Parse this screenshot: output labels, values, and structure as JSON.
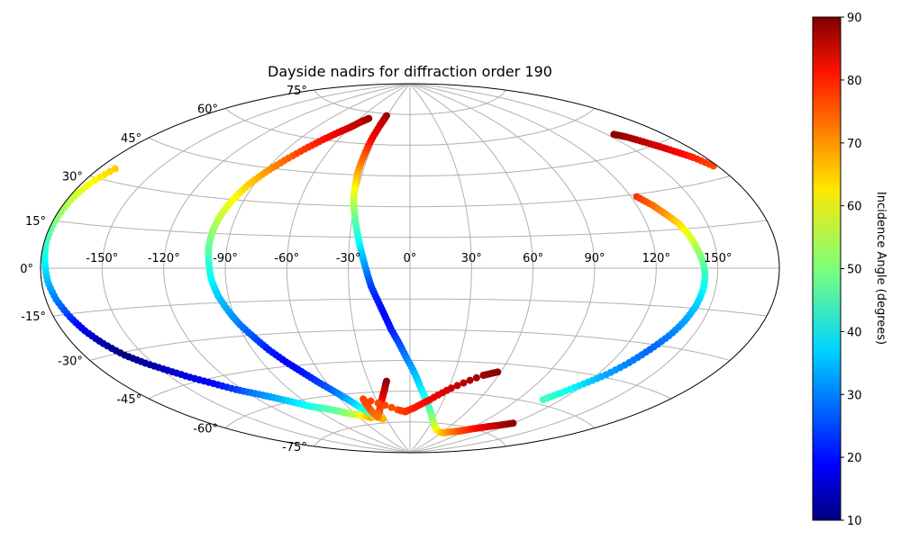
{
  "chart_data": {
    "type": "scatter",
    "projection": "aitoff",
    "title": "Dayside nadirs for diffraction order 190",
    "colorbar": {
      "label": "Incidence Angle (degrees)",
      "colormap": "jet",
      "range": [
        10,
        90
      ],
      "ticks": [
        "10",
        "20",
        "30",
        "40",
        "50",
        "60",
        "70",
        "80",
        "90"
      ]
    },
    "grid": true,
    "lon_ticks": [
      "-150°",
      "-120°",
      "-90°",
      "-60°",
      "-30°",
      "0°",
      "30°",
      "60°",
      "90°",
      "120°",
      "150°"
    ],
    "lat_ticks": [
      "75°",
      "60°",
      "45°",
      "30°",
      "15°",
      "0°",
      "-15°",
      "-30°",
      "-45°",
      "-60°",
      "-75°"
    ],
    "series": [
      {
        "points": [
          [
            -172,
            34,
            64
          ],
          [
            -176,
            28,
            60
          ],
          [
            -178,
            22,
            55
          ],
          [
            -179,
            15,
            50
          ],
          [
            -179,
            8,
            45
          ],
          [
            -178,
            2,
            40
          ],
          [
            -177,
            -4,
            35
          ],
          [
            -175,
            -10,
            30
          ],
          [
            -172,
            -16,
            24
          ],
          [
            -169,
            -21,
            18
          ],
          [
            -165,
            -26,
            13
          ],
          [
            -160,
            -31,
            10
          ],
          [
            -154,
            -35,
            12
          ],
          [
            -147,
            -39,
            15
          ],
          [
            -140,
            -43,
            18
          ],
          [
            -132,
            -47,
            20
          ],
          [
            -124,
            -51,
            25
          ],
          [
            -116,
            -54,
            30
          ],
          [
            -108,
            -57,
            33
          ],
          [
            -100,
            -60,
            37
          ],
          [
            -92,
            -63,
            41
          ],
          [
            -83,
            -65,
            45
          ],
          [
            -74,
            -67,
            48
          ],
          [
            -66,
            -69,
            52
          ],
          [
            -58,
            -70,
            56
          ],
          [
            -52,
            -71,
            62
          ],
          [
            -47,
            -72,
            66
          ]
        ]
      },
      {
        "points": [
          [
            -50,
            72,
            88
          ],
          [
            -55,
            70,
            86
          ],
          [
            -60,
            67,
            84
          ],
          [
            -66,
            64,
            82
          ],
          [
            -72,
            60,
            79
          ],
          [
            -78,
            55,
            76
          ],
          [
            -84,
            49,
            72
          ],
          [
            -89,
            43,
            68
          ],
          [
            -93,
            37,
            64
          ],
          [
            -96,
            30,
            60
          ],
          [
            -98,
            23,
            56
          ],
          [
            -99,
            16,
            52
          ],
          [
            -99,
            9,
            48
          ],
          [
            -98,
            2,
            44
          ],
          [
            -97,
            -5,
            40
          ],
          [
            -95,
            -12,
            36
          ],
          [
            -92,
            -19,
            33
          ],
          [
            -89,
            -25,
            30
          ],
          [
            -85,
            -31,
            26
          ],
          [
            -81,
            -37,
            22
          ],
          [
            -76,
            -43,
            20
          ],
          [
            -71,
            -48,
            21
          ],
          [
            -66,
            -53,
            24
          ],
          [
            -60,
            -58,
            28
          ],
          [
            -55,
            -62,
            33
          ],
          [
            -50,
            -66,
            38
          ],
          [
            -45,
            -69,
            44
          ],
          [
            -41,
            -71,
            50
          ],
          [
            -38,
            -72,
            56
          ],
          [
            -36,
            -73,
            62
          ],
          [
            -34,
            -73,
            66
          ]
        ]
      },
      {
        "points": [
          [
            -31,
            74,
            88
          ],
          [
            -32,
            69,
            84
          ],
          [
            -33,
            62,
            80
          ],
          [
            -33,
            55,
            74
          ],
          [
            -33,
            47,
            68
          ],
          [
            -32,
            40,
            62
          ],
          [
            -31,
            33,
            56
          ],
          [
            -29,
            26,
            50
          ],
          [
            -27,
            19,
            45
          ],
          [
            -25,
            12,
            40
          ],
          [
            -23,
            5,
            35
          ],
          [
            -21,
            -2,
            30
          ],
          [
            -19,
            -9,
            25
          ],
          [
            -16,
            -16,
            22
          ],
          [
            -13,
            -23,
            20
          ],
          [
            -10,
            -30,
            22
          ],
          [
            -6,
            -37,
            26
          ],
          [
            -2,
            -44,
            30
          ],
          [
            3,
            -51,
            34
          ],
          [
            8,
            -58,
            38
          ],
          [
            14,
            -64,
            42
          ],
          [
            21,
            -69,
            46
          ],
          [
            28,
            -73,
            50
          ],
          [
            36,
            -76,
            54
          ],
          [
            45,
            -78,
            58
          ],
          [
            55,
            -79,
            62
          ],
          [
            64,
            -79,
            66
          ],
          [
            74,
            -78,
            70
          ],
          [
            84,
            -77,
            74
          ],
          [
            94,
            -75,
            78
          ],
          [
            104,
            -73,
            82
          ],
          [
            113,
            -71,
            86
          ],
          [
            120,
            -69,
            89
          ]
        ]
      },
      {
        "points": [
          [
            -17,
            -55,
            89
          ],
          [
            -20,
            -59,
            86
          ],
          [
            -24,
            -63,
            82
          ],
          [
            -29,
            -67,
            78
          ],
          [
            -34,
            -70,
            74
          ],
          [
            -39,
            -72,
            71
          ],
          [
            -41,
            -69,
            72
          ],
          [
            -41,
            -66,
            74
          ],
          [
            -41,
            -63,
            75
          ],
          [
            -13,
            -69,
            74
          ],
          [
            -5,
            -70,
            76
          ],
          [
            5,
            -68,
            78
          ],
          [
            18,
            -64,
            80
          ],
          [
            32,
            -58,
            84
          ],
          [
            50,
            -51,
            88
          ],
          [
            58,
            -49,
            89
          ]
        ]
      },
      {
        "points": [
          [
            178,
            34,
            74
          ],
          [
            174,
            38,
            77
          ],
          [
            170,
            41,
            80
          ],
          [
            166,
            44,
            83
          ],
          [
            162,
            47,
            85
          ],
          [
            158,
            50,
            87
          ],
          [
            154,
            52,
            89
          ]
        ]
      },
      {
        "points": [
          [
            123,
            29,
            76
          ],
          [
            128,
            25,
            72
          ],
          [
            132,
            21,
            68
          ],
          [
            136,
            17,
            63
          ],
          [
            139,
            12,
            58
          ],
          [
            141,
            7,
            53
          ],
          [
            143,
            2,
            48
          ],
          [
            144,
            -3,
            44
          ],
          [
            144,
            -8,
            40
          ],
          [
            143,
            -14,
            36
          ],
          [
            141,
            -20,
            33
          ],
          [
            138,
            -26,
            30
          ],
          [
            134,
            -32,
            28
          ],
          [
            130,
            -38,
            30
          ],
          [
            125,
            -44,
            33
          ],
          [
            119,
            -49,
            37
          ],
          [
            113,
            -54,
            42
          ],
          [
            108,
            -58,
            45
          ]
        ]
      }
    ]
  }
}
